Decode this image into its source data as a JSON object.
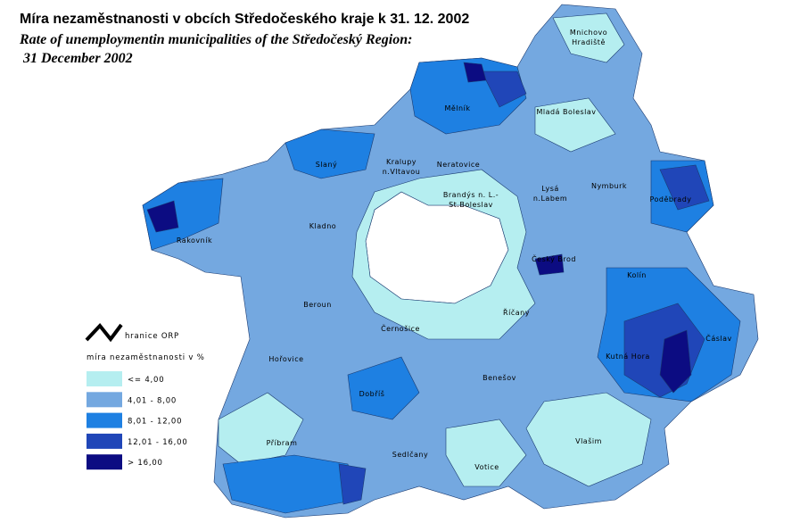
{
  "title": "Míra nezaměstnanosti v obcích Středočeského kraje k 31. 12. 2002",
  "subtitle": [
    "Rate of unemploymentin municipalities of the Středočeský Region:",
    " 31 December 2002"
  ],
  "legend": {
    "boundary": "hranice ORP",
    "heading": "míra nezaměstnanosti v %",
    "classes": [
      {
        "label": "<= 4,00",
        "color": "#b5eef0"
      },
      {
        "label": "4,01 - 8,00",
        "color": "#74a8e0"
      },
      {
        "label": "8,01 - 12,00",
        "color": "#1e80e2"
      },
      {
        "label": "12,01 - 16,00",
        "color": "#2046b8"
      },
      {
        "label": "> 16,00",
        "color": "#0c0c82"
      }
    ]
  },
  "towns": [
    [
      "Mnichovo",
      "Hradiště"
    ],
    [
      "Mělník"
    ],
    [
      "Mladá Boleslav"
    ],
    [
      "Slaný"
    ],
    [
      "Kralupy",
      "n.Vltavou"
    ],
    [
      "Neratovice"
    ],
    [
      "Brandýs n. L.-",
      "St.Boleslav"
    ],
    [
      "Lysá",
      "n.Labem"
    ],
    [
      "Nymburk"
    ],
    [
      "Poděbrady"
    ],
    [
      "Rakovník"
    ],
    [
      "Kladno"
    ],
    [
      "Český Brod"
    ],
    [
      "Kolín"
    ],
    [
      "Beroun"
    ],
    [
      "Černošice"
    ],
    [
      "Říčany"
    ],
    [
      "Hořovice"
    ],
    [
      "Čáslav"
    ],
    [
      "Kutná Hora"
    ],
    [
      "Benešov"
    ],
    [
      "Dobříš"
    ],
    [
      "Příbram"
    ],
    [
      "Sedlčany"
    ],
    [
      "Vlašim"
    ],
    [
      "Votice"
    ]
  ]
}
